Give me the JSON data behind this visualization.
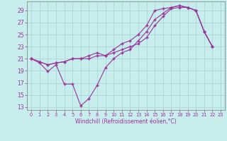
{
  "xlabel": "Windchill (Refroidissement éolien,°C)",
  "xlim": [
    -0.5,
    23.5
  ],
  "ylim": [
    12.5,
    30.5
  ],
  "xticks": [
    0,
    1,
    2,
    3,
    4,
    5,
    6,
    7,
    8,
    9,
    10,
    11,
    12,
    13,
    14,
    15,
    16,
    17,
    18,
    19,
    20,
    21,
    22,
    23
  ],
  "yticks": [
    13,
    15,
    17,
    19,
    21,
    23,
    25,
    27,
    29
  ],
  "bg_color": "#c8eded",
  "grid_color": "#a8d8d8",
  "line_color": "#993399",
  "line1_x": [
    0,
    1,
    2,
    3,
    4,
    5,
    6,
    7,
    8,
    9,
    10,
    11,
    12,
    13,
    14,
    15,
    16,
    17,
    18,
    19,
    20,
    21,
    22
  ],
  "line1_y": [
    21.0,
    20.3,
    18.9,
    20.0,
    16.8,
    16.8,
    13.2,
    14.4,
    16.6,
    19.5,
    21.0,
    22.0,
    22.5,
    24.0,
    25.5,
    27.5,
    28.5,
    29.5,
    29.8,
    29.5,
    29.0,
    25.5,
    23.0
  ],
  "line2_x": [
    0,
    1,
    2,
    3,
    4,
    5,
    6,
    7,
    8,
    9,
    10,
    11,
    12,
    13,
    14,
    15,
    16,
    17,
    18,
    19,
    20,
    21,
    22
  ],
  "line2_y": [
    21.0,
    20.5,
    20.0,
    20.3,
    20.5,
    21.0,
    21.0,
    21.0,
    21.5,
    21.5,
    22.0,
    22.5,
    23.0,
    23.5,
    24.5,
    26.5,
    28.0,
    29.3,
    29.5,
    29.5,
    29.0,
    25.5,
    23.0
  ],
  "line3_x": [
    0,
    1,
    2,
    3,
    4,
    5,
    6,
    7,
    8,
    9,
    10,
    11,
    12,
    13,
    14,
    15,
    16,
    17,
    18,
    19,
    20,
    21,
    22
  ],
  "line3_y": [
    21.0,
    20.5,
    20.0,
    20.3,
    20.5,
    21.0,
    21.0,
    21.5,
    22.0,
    21.5,
    22.5,
    23.5,
    24.0,
    25.0,
    26.5,
    29.0,
    29.3,
    29.5,
    29.8,
    29.5,
    29.0,
    25.5,
    23.0
  ]
}
